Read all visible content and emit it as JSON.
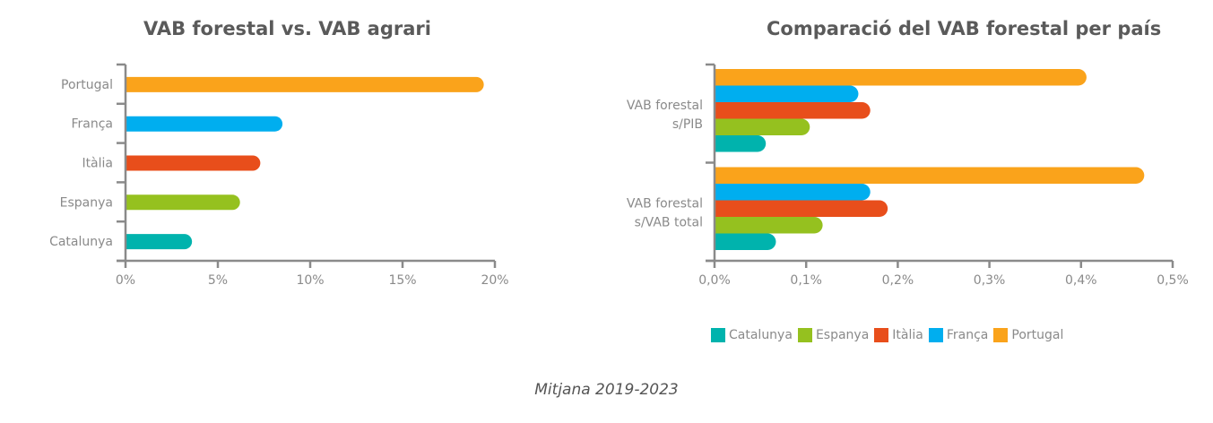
{
  "colors": {
    "Catalunya": "#00b3ad",
    "Espanya": "#95c11f",
    "Itàlia": "#e84e1b",
    "França": "#00aeef",
    "Portugal": "#faa31b",
    "axis": "#8a8a8a"
  },
  "footer": "Mitjana 2019-2023",
  "chart_data": [
    {
      "type": "bar",
      "orientation": "horizontal",
      "title": "VAB forestal vs. VAB agrari",
      "categories": [
        "Portugal",
        "França",
        "Itàlia",
        "Espanya",
        "Catalunya"
      ],
      "values": [
        19.4,
        8.5,
        7.3,
        6.2,
        3.6
      ],
      "unit": "%",
      "xlim": [
        0,
        20
      ],
      "xticks": [
        "0%",
        "5%",
        "10%",
        "15%",
        "20%"
      ],
      "xtick_values": [
        0,
        5,
        10,
        15,
        20
      ],
      "grid": false,
      "legend": "none"
    },
    {
      "type": "bar",
      "orientation": "horizontal",
      "title": "Comparació del VAB forestal per país",
      "categories": [
        "VAB forestal s/PIB",
        "VAB forestal s/VAB total"
      ],
      "category_lines": [
        [
          "VAB forestal",
          "s/PIB"
        ],
        [
          "VAB forestal",
          "s/VAB total"
        ]
      ],
      "series": [
        {
          "name": "Portugal",
          "values": [
            0.406,
            0.469
          ]
        },
        {
          "name": "França",
          "values": [
            0.157,
            0.17
          ]
        },
        {
          "name": "Itàlia",
          "values": [
            0.17,
            0.189
          ]
        },
        {
          "name": "Espanya",
          "values": [
            0.104,
            0.118
          ]
        },
        {
          "name": "Catalunya",
          "values": [
            0.056,
            0.067
          ]
        }
      ],
      "unit": "%",
      "xlim": [
        0,
        0.5
      ],
      "xticks": [
        "0,0%",
        "0,1%",
        "0,2%",
        "0,3%",
        "0,4%",
        "0,5%"
      ],
      "xtick_values": [
        0,
        0.1,
        0.2,
        0.3,
        0.4,
        0.5
      ],
      "legend_order": [
        "Catalunya",
        "Espanya",
        "Itàlia",
        "França",
        "Portugal"
      ],
      "legend": "bottom",
      "grid": false
    }
  ]
}
